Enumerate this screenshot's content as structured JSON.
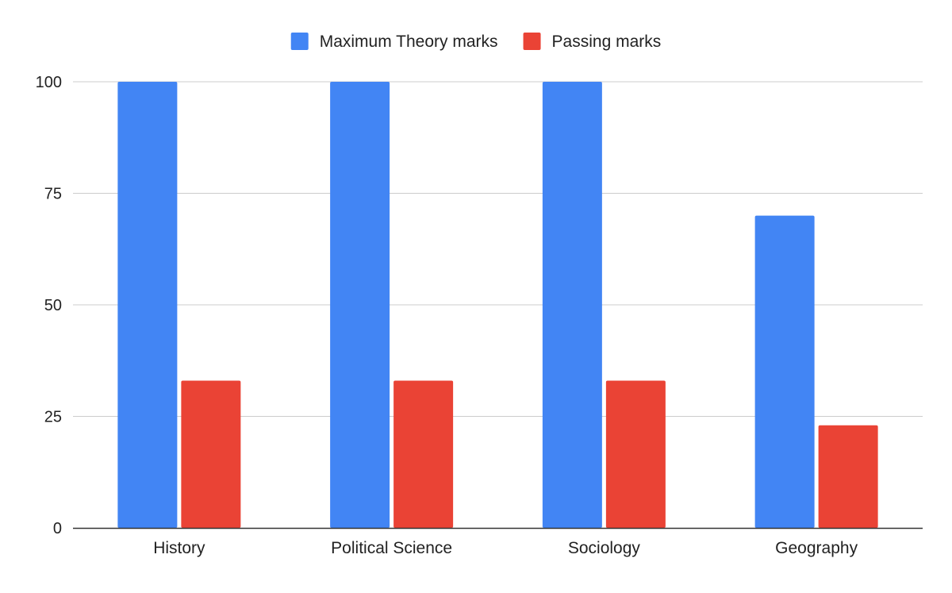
{
  "chart_data": {
    "type": "bar",
    "categories": [
      "History",
      "Political Science",
      "Sociology",
      "Geography"
    ],
    "series": [
      {
        "name": "Maximum Theory marks",
        "values": [
          100,
          100,
          100,
          70
        ],
        "color": "#4285f4"
      },
      {
        "name": "Passing marks",
        "values": [
          33,
          33,
          33,
          23
        ],
        "color": "#ea4335"
      }
    ],
    "title": "",
    "xlabel": "",
    "ylabel": "",
    "ylim": [
      0,
      100
    ],
    "yticks": [
      0,
      25,
      50,
      75,
      100
    ],
    "grid": true,
    "legend_position": "top"
  }
}
